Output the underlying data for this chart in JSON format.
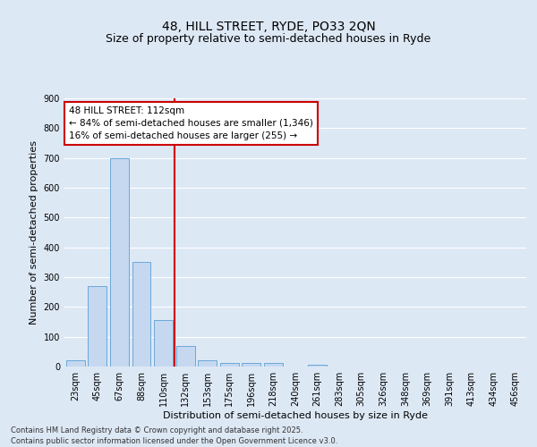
{
  "title": "48, HILL STREET, RYDE, PO33 2QN",
  "subtitle": "Size of property relative to semi-detached houses in Ryde",
  "xlabel": "Distribution of semi-detached houses by size in Ryde",
  "ylabel": "Number of semi-detached properties",
  "categories": [
    "23sqm",
    "45sqm",
    "67sqm",
    "88sqm",
    "110sqm",
    "132sqm",
    "153sqm",
    "175sqm",
    "196sqm",
    "218sqm",
    "240sqm",
    "261sqm",
    "283sqm",
    "305sqm",
    "326sqm",
    "348sqm",
    "369sqm",
    "391sqm",
    "413sqm",
    "434sqm",
    "456sqm"
  ],
  "values": [
    20,
    270,
    700,
    350,
    155,
    68,
    22,
    11,
    12,
    11,
    0,
    7,
    0,
    0,
    0,
    0,
    0,
    0,
    0,
    0,
    0
  ],
  "bar_color": "#c5d8f0",
  "bar_edge_color": "#5a9fd4",
  "vline_x_index": 4,
  "vline_color": "#cc0000",
  "annotation_line1": "48 HILL STREET: 112sqm",
  "annotation_line2": "← 84% of semi-detached houses are smaller (1,346)",
  "annotation_line3": "16% of semi-detached houses are larger (255) →",
  "annotation_box_color": "#cc0000",
  "annotation_box_bg": "#ffffff",
  "ylim": [
    0,
    900
  ],
  "yticks": [
    0,
    100,
    200,
    300,
    400,
    500,
    600,
    700,
    800,
    900
  ],
  "bg_color": "#dde8f5",
  "plot_bg_color": "#dde8f5",
  "grid_color": "#ffffff",
  "footer": "Contains HM Land Registry data © Crown copyright and database right 2025.\nContains public sector information licensed under the Open Government Licence v3.0.",
  "title_fontsize": 10,
  "subtitle_fontsize": 9,
  "xlabel_fontsize": 8,
  "ylabel_fontsize": 8,
  "tick_fontsize": 7,
  "annotation_fontsize": 7.5,
  "footer_fontsize": 6
}
